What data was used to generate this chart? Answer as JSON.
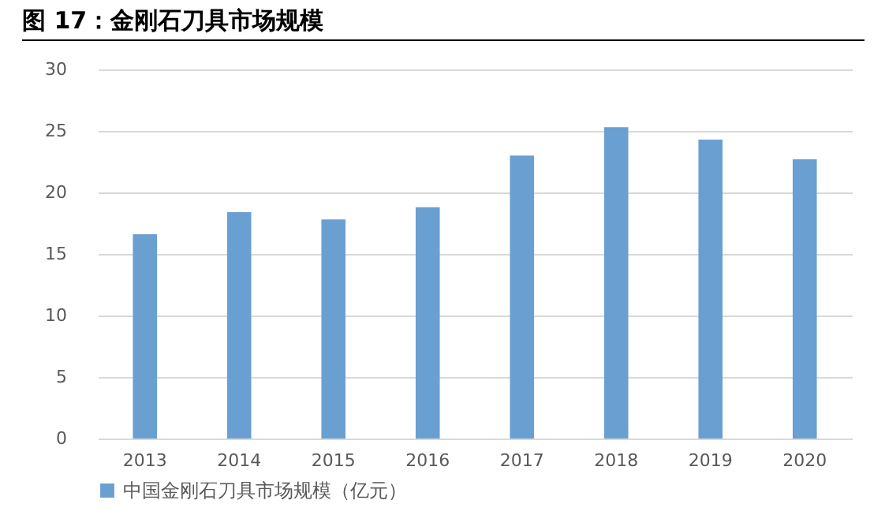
{
  "chart_data": {
    "type": "bar",
    "title": "图 17：金刚石刀具市场规模",
    "categories": [
      "2013",
      "2014",
      "2015",
      "2016",
      "2017",
      "2018",
      "2019",
      "2020"
    ],
    "series": [
      {
        "name": "中国金刚石刀具市场规模（亿元）",
        "color": "#6a9fd1",
        "values": [
          16.6,
          18.4,
          17.8,
          18.8,
          23.0,
          25.3,
          24.3,
          22.7
        ]
      }
    ],
    "ylim": [
      0,
      30
    ],
    "yticks": [
      0,
      5,
      10,
      15,
      20,
      25,
      30
    ],
    "grid": "y",
    "legend": "bottom"
  }
}
